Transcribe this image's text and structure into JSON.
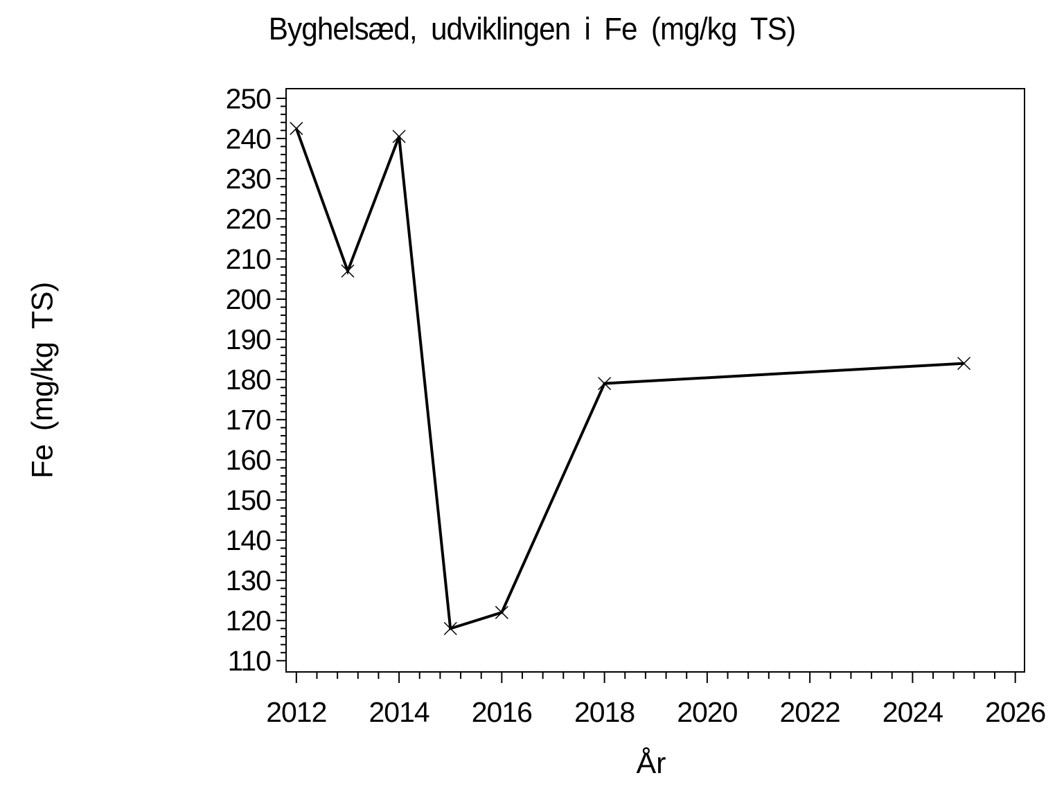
{
  "chart_data": {
    "type": "line",
    "title": "Byghelsæd, udviklingen i Fe (mg/kg TS)",
    "xlabel": "År",
    "ylabel": "Fe (mg/kg TS)",
    "series": [
      {
        "name": "Fe (mg/kg TS)",
        "x": [
          2012,
          2013,
          2014,
          2015,
          2016,
          2018,
          2025
        ],
        "y": [
          242.5,
          207,
          240.5,
          118,
          122,
          179,
          184
        ]
      }
    ],
    "x_ticks": [
      2012,
      2014,
      2016,
      2018,
      2020,
      2022,
      2024,
      2026
    ],
    "y_ticks": [
      110,
      120,
      130,
      140,
      150,
      160,
      170,
      180,
      190,
      200,
      210,
      220,
      230,
      240,
      250
    ],
    "x_minor_tick_step": 0.4,
    "y_minor_tick_step": 2,
    "xlim": [
      2011.8,
      2026.18
    ],
    "ylim": [
      107.2,
      252.4
    ],
    "marker": "x",
    "grid": false,
    "frame": true,
    "legend": null,
    "line_color": "#000000",
    "text_color": "#000000",
    "background_color": "#ffffff"
  }
}
